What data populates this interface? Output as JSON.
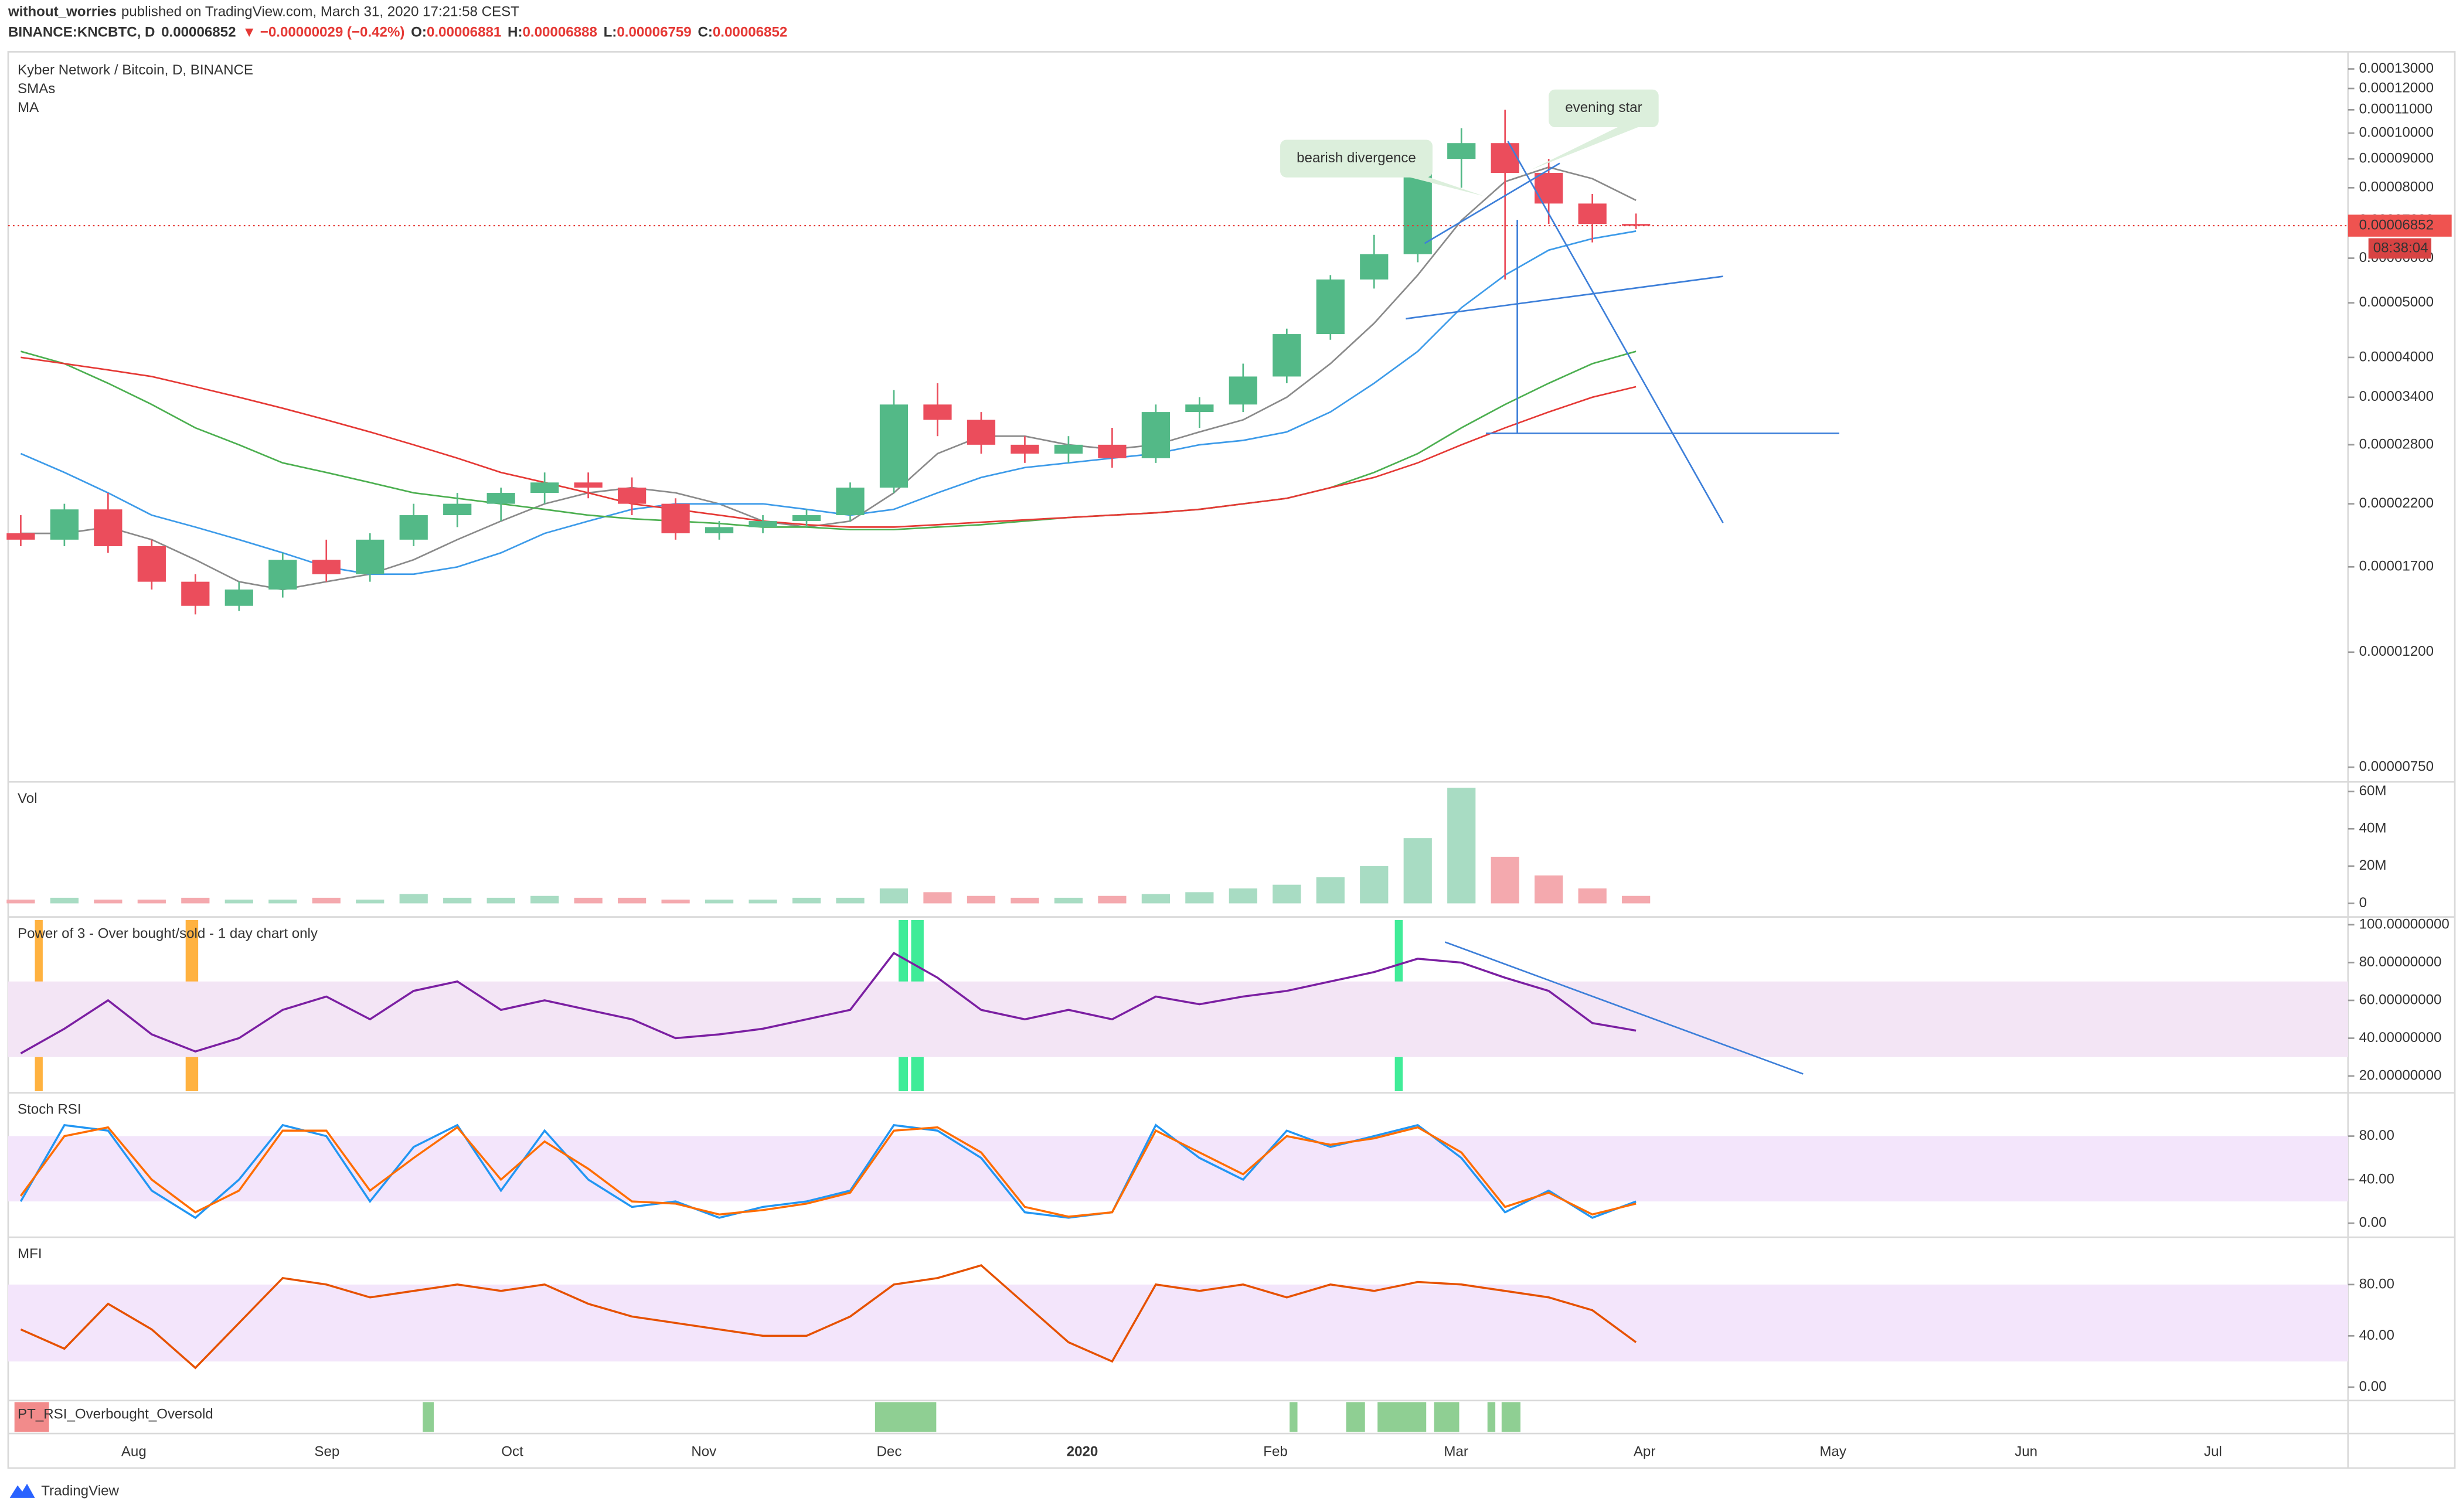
{
  "header": {
    "author": "without_worries",
    "published": "published on TradingView.com, March 31, 2020 17:21:58 CEST",
    "symbol": "BINANCE:KNCBTC, D",
    "price": "0.00006852",
    "change": "▼ −0.00000029 (−0.42%)",
    "ohlc": [
      {
        "key": "O:",
        "value": "0.00006881"
      },
      {
        "key": "H:",
        "value": "0.00006888"
      },
      {
        "key": "L:",
        "value": "0.00006759"
      },
      {
        "key": "C:",
        "value": "0.00006852"
      }
    ]
  },
  "chart_data": [
    {
      "type": "candlestick",
      "title": "Kyber Network / Bitcoin, D, BINANCE",
      "indicator_labels": [
        "SMAs",
        "MA"
      ],
      "log_scale": true,
      "ylim": [
        7.2e-06,
        0.000135
      ],
      "yticks": [
        {
          "value": 0.00013,
          "label": "0.00013000"
        },
        {
          "value": 0.00012,
          "label": "0.00012000"
        },
        {
          "value": 0.00011,
          "label": "0.00011000"
        },
        {
          "value": 0.0001,
          "label": "0.00010000"
        },
        {
          "value": 9e-05,
          "label": "0.00009000"
        },
        {
          "value": 8e-05,
          "label": "0.00008000"
        },
        {
          "value": 7e-05,
          "label": "0.00007000"
        },
        {
          "value": 6e-05,
          "label": "0.00006000"
        },
        {
          "value": 5e-05,
          "label": "0.00005000"
        },
        {
          "value": 4e-05,
          "label": "0.00004000"
        },
        {
          "value": 3.4e-05,
          "label": "0.00003400"
        },
        {
          "value": 2.8e-05,
          "label": "0.00002800"
        },
        {
          "value": 2.2e-05,
          "label": "0.00002200"
        },
        {
          "value": 1.7e-05,
          "label": "0.00001700"
        },
        {
          "value": 1.2e-05,
          "label": "0.00001200"
        },
        {
          "value": 7.5e-06,
          "label": "0.00000750"
        }
      ],
      "up_color": "#53b987",
      "down_color": "#eb4d5c",
      "open": [
        1.95e-05,
        1.9e-05,
        2.15e-05,
        1.85e-05,
        1.6e-05,
        1.45e-05,
        1.55e-05,
        1.75e-05,
        1.65e-05,
        1.9e-05,
        2.1e-05,
        2.2e-05,
        2.3e-05,
        2.4e-05,
        2.35e-05,
        2.2e-05,
        1.95e-05,
        2e-05,
        2.05e-05,
        2.1e-05,
        2.35e-05,
        3.3e-05,
        3.1e-05,
        2.8e-05,
        2.7e-05,
        2.8e-05,
        2.65e-05,
        3.2e-05,
        3.3e-05,
        3.7e-05,
        4.4e-05,
        5.5e-05,
        6.1e-05,
        9e-05,
        9.6e-05,
        8.5e-05,
        7.5e-05,
        6.9e-05
      ],
      "high": [
        2.1e-05,
        2.2e-05,
        2.3e-05,
        1.9e-05,
        1.65e-05,
        1.6e-05,
        1.8e-05,
        1.9e-05,
        1.95e-05,
        2.2e-05,
        2.3e-05,
        2.35e-05,
        2.5e-05,
        2.5e-05,
        2.45e-05,
        2.25e-05,
        2.05e-05,
        2.1e-05,
        2.15e-05,
        2.4e-05,
        3.5e-05,
        3.6e-05,
        3.2e-05,
        2.9e-05,
        2.9e-05,
        3e-05,
        3.3e-05,
        3.4e-05,
        3.9e-05,
        4.5e-05,
        5.6e-05,
        6.6e-05,
        9.5e-05,
        0.000102,
        0.00011,
        9e-05,
        7.8e-05,
        7.2e-05
      ],
      "low": [
        1.85e-05,
        1.85e-05,
        1.8e-05,
        1.55e-05,
        1.4e-05,
        1.42e-05,
        1.5e-05,
        1.6e-05,
        1.6e-05,
        1.85e-05,
        2e-05,
        2.05e-05,
        2.2e-05,
        2.25e-05,
        2.1e-05,
        1.9e-05,
        1.9e-05,
        1.95e-05,
        2e-05,
        2.05e-05,
        2.3e-05,
        2.9e-05,
        2.7e-05,
        2.6e-05,
        2.6e-05,
        2.55e-05,
        2.6e-05,
        3e-05,
        3.2e-05,
        3.6e-05,
        4.3e-05,
        5.3e-05,
        5.9e-05,
        8e-05,
        5.5e-05,
        6.9e-05,
        6.4e-05,
        6.759e-05
      ],
      "close": [
        1.9e-05,
        2.15e-05,
        1.85e-05,
        1.6e-05,
        1.45e-05,
        1.55e-05,
        1.75e-05,
        1.65e-05,
        1.9e-05,
        2.1e-05,
        2.2e-05,
        2.3e-05,
        2.4e-05,
        2.35e-05,
        2.2e-05,
        1.95e-05,
        2e-05,
        2.05e-05,
        2.1e-05,
        2.35e-05,
        3.3e-05,
        3.1e-05,
        2.8e-05,
        2.7e-05,
        2.8e-05,
        2.65e-05,
        3.2e-05,
        3.3e-05,
        3.7e-05,
        4.4e-05,
        5.5e-05,
        6.1e-05,
        9e-05,
        9.6e-05,
        8.5e-05,
        7.5e-05,
        6.9e-05,
        6.852e-05
      ],
      "lines": [
        {
          "color": "#8a8a8a",
          "values": [
            1.95e-05,
            1.95e-05,
            2e-05,
            1.9e-05,
            1.75e-05,
            1.6e-05,
            1.55e-05,
            1.6e-05,
            1.65e-05,
            1.75e-05,
            1.9e-05,
            2.05e-05,
            2.2e-05,
            2.3e-05,
            2.35e-05,
            2.3e-05,
            2.2e-05,
            2.05e-05,
            2e-05,
            2.05e-05,
            2.3e-05,
            2.7e-05,
            2.9e-05,
            2.9e-05,
            2.8e-05,
            2.75e-05,
            2.8e-05,
            2.95e-05,
            3.1e-05,
            3.4e-05,
            3.9e-05,
            4.6e-05,
            5.6e-05,
            7e-05,
            8.2e-05,
            8.7e-05,
            8.3e-05,
            7.6e-05
          ]
        },
        {
          "color": "#3d9be9",
          "values": [
            2.7e-05,
            2.5e-05,
            2.3e-05,
            2.1e-05,
            2e-05,
            1.9e-05,
            1.8e-05,
            1.7e-05,
            1.65e-05,
            1.65e-05,
            1.7e-05,
            1.8e-05,
            1.95e-05,
            2.05e-05,
            2.15e-05,
            2.2e-05,
            2.2e-05,
            2.2e-05,
            2.15e-05,
            2.1e-05,
            2.15e-05,
            2.3e-05,
            2.45e-05,
            2.55e-05,
            2.6e-05,
            2.65e-05,
            2.7e-05,
            2.8e-05,
            2.85e-05,
            2.95e-05,
            3.2e-05,
            3.6e-05,
            4.1e-05,
            4.9e-05,
            5.6e-05,
            6.2e-05,
            6.5e-05,
            6.7e-05
          ]
        },
        {
          "color": "#4caf50",
          "values": [
            4.1e-05,
            3.9e-05,
            3.6e-05,
            3.3e-05,
            3e-05,
            2.8e-05,
            2.6e-05,
            2.5e-05,
            2.4e-05,
            2.3e-05,
            2.25e-05,
            2.2e-05,
            2.15e-05,
            2.1e-05,
            2.07e-05,
            2.05e-05,
            2.03e-05,
            2e-05,
            2e-05,
            1.98e-05,
            1.98e-05,
            2e-05,
            2.02e-05,
            2.05e-05,
            2.08e-05,
            2.1e-05,
            2.12e-05,
            2.15e-05,
            2.2e-05,
            2.25e-05,
            2.35e-05,
            2.5e-05,
            2.7e-05,
            3e-05,
            3.3e-05,
            3.6e-05,
            3.9e-05,
            4.1e-05
          ]
        },
        {
          "color": "#e53935",
          "values": [
            4e-05,
            3.9e-05,
            3.8e-05,
            3.7e-05,
            3.55e-05,
            3.4e-05,
            3.25e-05,
            3.1e-05,
            2.95e-05,
            2.8e-05,
            2.65e-05,
            2.5e-05,
            2.4e-05,
            2.3e-05,
            2.2e-05,
            2.15e-05,
            2.1e-05,
            2.05e-05,
            2.02e-05,
            2e-05,
            2e-05,
            2.02e-05,
            2.04e-05,
            2.06e-05,
            2.08e-05,
            2.1e-05,
            2.12e-05,
            2.15e-05,
            2.2e-05,
            2.25e-05,
            2.35e-05,
            2.45e-05,
            2.6e-05,
            2.8e-05,
            3e-05,
            3.2e-05,
            3.4e-05,
            3.55e-05
          ]
        }
      ],
      "price_label": {
        "value": 6.852e-05,
        "label": "0.00006852"
      },
      "countdown": "08:38:04",
      "annotations": [
        "bearish divergence",
        "evening star"
      ],
      "xticks": [
        "Aug",
        "Sep",
        "Oct",
        "Nov",
        "Dec",
        "2020",
        "Feb",
        "Mar",
        "Apr",
        "May",
        "Jun",
        "Jul"
      ]
    },
    {
      "type": "volume",
      "title": "Vol",
      "ylim": [
        -5600000,
        61800000
      ],
      "yticks": [
        0,
        {
          "value": 20000000,
          "label": "20M"
        },
        {
          "value": 40000000,
          "label": "40M"
        },
        {
          "value": 60000000,
          "label": "60M"
        }
      ],
      "up_color": "#a8dcc3",
      "down_color": "#f4a9ae",
      "values": [
        2000000,
        3000000,
        2000000,
        2000000,
        3000000,
        2000000,
        2000000,
        3000000,
        2000000,
        5000000,
        3000000,
        3000000,
        4000000,
        3000000,
        3000000,
        2000000,
        2000000,
        2000000,
        3000000,
        3000000,
        8000000,
        6000000,
        4000000,
        3000000,
        3000000,
        4000000,
        5000000,
        6000000,
        8000000,
        10000000,
        14000000,
        20000000,
        35000000,
        62000000,
        25000000,
        15000000,
        8000000,
        4000000
      ]
    },
    {
      "type": "line",
      "title": "Power of 3 - Over bought/sold - 1 day chart only",
      "ylim": [
        12.8,
        100.8
      ],
      "band": [
        30,
        70
      ],
      "band_color": "#f3e5f5",
      "yticks": [
        {
          "value": 20,
          "label": "20.00000000"
        },
        {
          "value": 40,
          "label": "40.00000000"
        },
        {
          "value": 60,
          "label": "60.00000000"
        },
        {
          "value": 80,
          "label": "80.00000000"
        },
        {
          "value": 100,
          "label": "100.00000000"
        }
      ],
      "series": [
        {
          "color": "#7b1fa2",
          "values": [
            32,
            45,
            60,
            42,
            33,
            40,
            55,
            62,
            50,
            65,
            70,
            55,
            60,
            55,
            50,
            40,
            42,
            45,
            50,
            55,
            85,
            72,
            55,
            50,
            55,
            50,
            62,
            58,
            62,
            65,
            70,
            75,
            82,
            80,
            72,
            65,
            48,
            44
          ]
        }
      ]
    },
    {
      "type": "line",
      "title": "Stoch RSI",
      "ylim": [
        -10,
        114
      ],
      "band": [
        20,
        80
      ],
      "band_color": "#f3e5fb",
      "yticks": [
        {
          "value": 0,
          "label": "0.00"
        },
        {
          "value": 40,
          "label": "40.00"
        },
        {
          "value": 80,
          "label": "80.00"
        }
      ],
      "series": [
        {
          "color": "#2196f3",
          "values": [
            20,
            90,
            85,
            30,
            5,
            40,
            90,
            80,
            20,
            70,
            90,
            30,
            85,
            40,
            15,
            20,
            5,
            15,
            20,
            30,
            90,
            85,
            60,
            10,
            5,
            10,
            90,
            60,
            40,
            85,
            70,
            80,
            90,
            60,
            10,
            30,
            5,
            20
          ]
        },
        {
          "color": "#ff6d00",
          "values": [
            25,
            80,
            88,
            40,
            10,
            30,
            85,
            85,
            30,
            60,
            88,
            40,
            75,
            50,
            20,
            18,
            8,
            12,
            18,
            28,
            85,
            88,
            65,
            15,
            6,
            10,
            85,
            65,
            45,
            80,
            72,
            78,
            88,
            65,
            15,
            28,
            8,
            18
          ]
        }
      ]
    },
    {
      "type": "line",
      "title": "MFI",
      "ylim": [
        -8,
        112
      ],
      "band": [
        20,
        80
      ],
      "band_color": "#f3e5fb",
      "yticks": [
        {
          "value": 0,
          "label": "0.00"
        },
        {
          "value": 40,
          "label": "40.00"
        },
        {
          "value": 80,
          "label": "80.00"
        }
      ],
      "series": [
        {
          "color": "#e65100",
          "values": [
            45,
            30,
            65,
            45,
            15,
            50,
            85,
            80,
            70,
            75,
            80,
            75,
            80,
            65,
            55,
            50,
            45,
            40,
            40,
            55,
            80,
            85,
            95,
            65,
            35,
            20,
            80,
            75,
            80,
            70,
            80,
            75,
            82,
            80,
            75,
            70,
            60,
            35
          ]
        }
      ]
    },
    {
      "type": "signals",
      "title": "PT_RSI_Overbought_Oversold"
    }
  ],
  "footer": {
    "brand": "TradingView"
  }
}
